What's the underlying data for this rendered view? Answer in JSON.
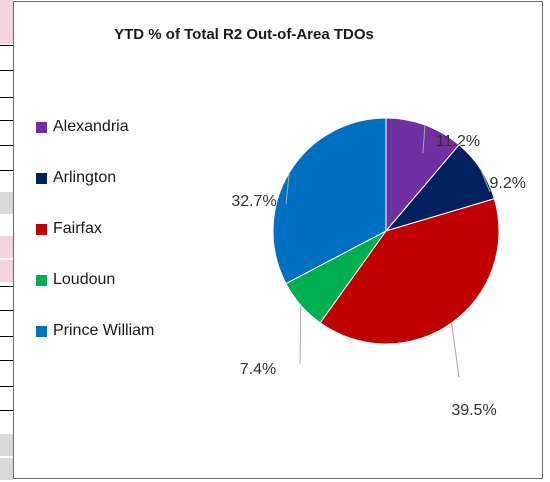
{
  "chart_data": {
    "type": "pie",
    "title": "YTD % of Total R2 Out-of-Area TDOs",
    "legend_position": "left",
    "slices": [
      {
        "name": "Alexandria",
        "value": 11.2,
        "label": "11.2%",
        "color": "#7030A0"
      },
      {
        "name": "Arlington",
        "value": 9.2,
        "label": "9.2%",
        "color": "#002060"
      },
      {
        "name": "Fairfax",
        "value": 39.5,
        "label": "39.5%",
        "color": "#C00000"
      },
      {
        "name": "Loudoun",
        "value": 7.4,
        "label": "7.4%",
        "color": "#00B050"
      },
      {
        "name": "Prince William",
        "value": 32.7,
        "label": "32.7%",
        "color": "#0070C0"
      }
    ]
  },
  "background_strip_colors": [
    "#f4cccc",
    "#000000",
    "#d9d9d9"
  ]
}
